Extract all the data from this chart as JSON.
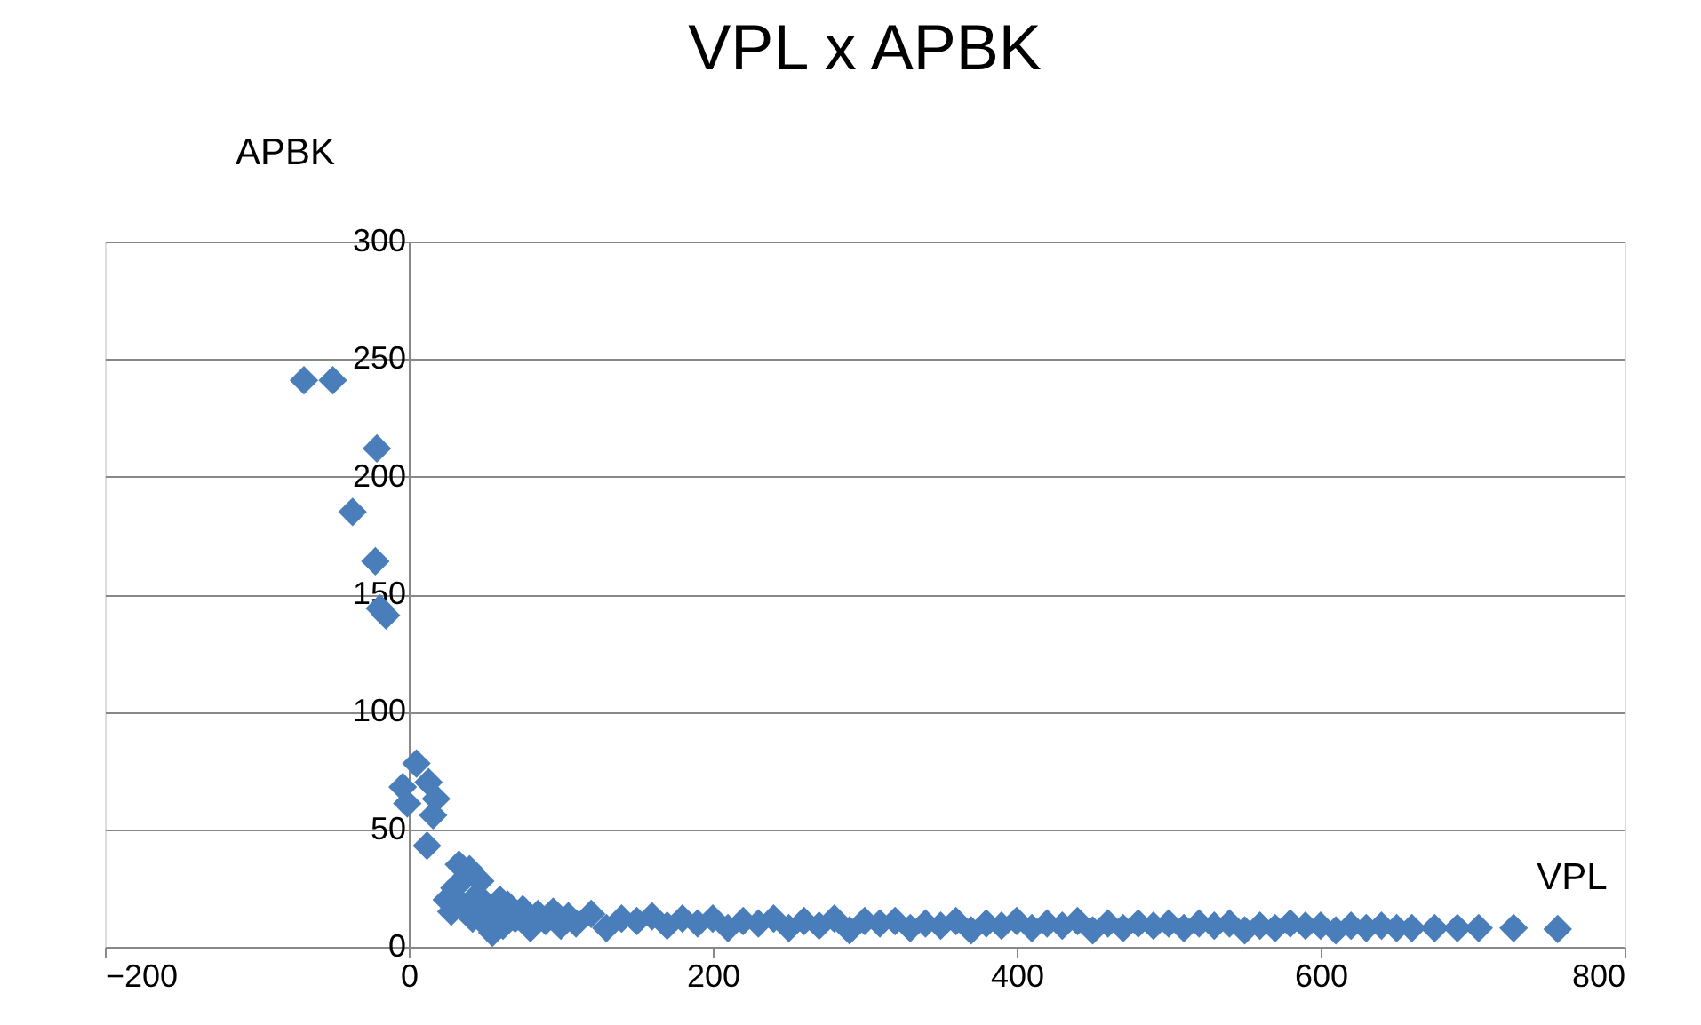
{
  "chart_data": {
    "type": "scatter",
    "title": "VPL x APBK",
    "xlabel": "VPL",
    "ylabel": "APBK",
    "marker": "diamond",
    "grid": "y",
    "xlim": [
      -200,
      800
    ],
    "xticks": [
      -200,
      0,
      200,
      400,
      600,
      800
    ],
    "ylim": [
      0,
      300
    ],
    "yticks": [
      0,
      50,
      100,
      150,
      200,
      250,
      300
    ],
    "series": [
      {
        "color": "#4a7ebb",
        "x": [
          -69,
          -50,
          -21,
          -37,
          -22,
          -19,
          -15,
          5,
          -4,
          -1,
          13,
          18,
          16,
          12,
          25,
          28,
          30,
          33,
          35,
          38,
          40,
          42,
          45,
          47,
          50,
          52,
          55,
          58,
          60,
          62,
          65,
          70,
          75,
          80,
          85,
          90,
          95,
          100,
          105,
          110,
          120,
          130,
          140,
          150,
          160,
          170,
          180,
          190,
          200,
          210,
          220,
          230,
          240,
          250,
          260,
          270,
          280,
          290,
          300,
          310,
          320,
          330,
          340,
          350,
          360,
          370,
          380,
          390,
          400,
          410,
          420,
          430,
          440,
          450,
          460,
          470,
          480,
          490,
          500,
          510,
          520,
          530,
          540,
          550,
          560,
          570,
          580,
          590,
          600,
          610,
          620,
          630,
          640,
          650,
          660,
          675,
          690,
          704,
          727,
          756
        ],
        "values": [
          241,
          241,
          212,
          185,
          164,
          144,
          141,
          78,
          68,
          61,
          70,
          63,
          56,
          43,
          20,
          15,
          25,
          35,
          18,
          30,
          33,
          12,
          22,
          28,
          10,
          17,
          6,
          14,
          20,
          9,
          18,
          12,
          16,
          8,
          14,
          11,
          15,
          9,
          13,
          10,
          14,
          8,
          12,
          11,
          13,
          9,
          12,
          10,
          12,
          8,
          11,
          10,
          12,
          8,
          11,
          9,
          12,
          7,
          11,
          10,
          11,
          8,
          10,
          9,
          11,
          7,
          10,
          9,
          11,
          8,
          10,
          9,
          11,
          7,
          10,
          8,
          10,
          9,
          10,
          8,
          10,
          9,
          10,
          7,
          9,
          8,
          10,
          9,
          9,
          7,
          9,
          8,
          9,
          8,
          8,
          8,
          8,
          8,
          8,
          7.6
        ]
      }
    ]
  }
}
